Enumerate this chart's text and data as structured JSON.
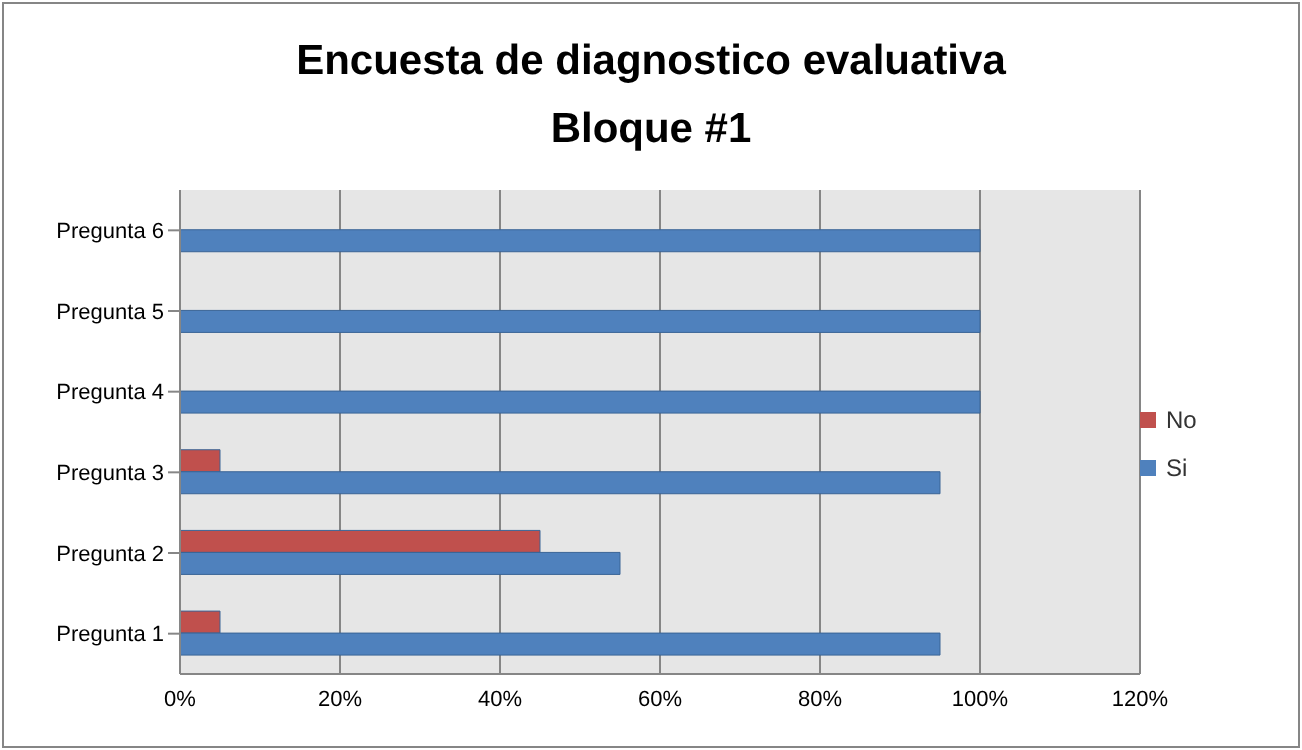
{
  "chart_data": {
    "type": "bar",
    "orientation": "horizontal",
    "title": "Encuesta de diagnostico evaluativa\nBloque #1",
    "categories": [
      "Pregunta 6",
      "Pregunta 5",
      "Pregunta 4",
      "Pregunta 3",
      "Pregunta 2",
      "Pregunta 1"
    ],
    "series": [
      {
        "name": "Si",
        "color": "#4f81bd",
        "values": [
          100,
          100,
          100,
          95,
          55,
          95
        ]
      },
      {
        "name": "No",
        "color": "#c0504d",
        "values": [
          0,
          0,
          0,
          5,
          45,
          5
        ]
      }
    ],
    "xlim": [
      0,
      120
    ],
    "xticks": [
      {
        "value": 0,
        "label": "0%"
      },
      {
        "value": 20,
        "label": "20%"
      },
      {
        "value": 40,
        "label": "40%"
      },
      {
        "value": 60,
        "label": "60%"
      },
      {
        "value": 80,
        "label": "80%"
      },
      {
        "value": 100,
        "label": "100%"
      },
      {
        "value": 120,
        "label": "120%"
      }
    ],
    "grid": "x",
    "legend": "right"
  }
}
